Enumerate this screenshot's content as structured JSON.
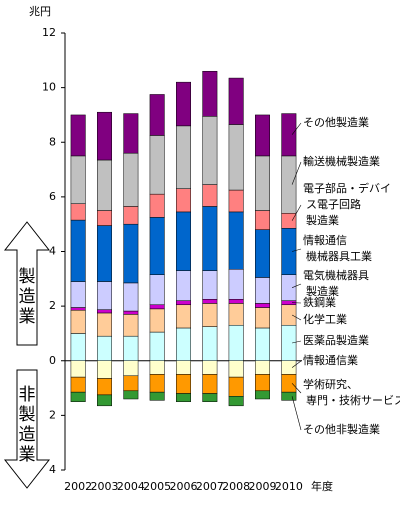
{
  "chart_data": {
    "type": "stacked-bar",
    "y_unit": "兆円",
    "x_label": "年度",
    "annotations": [
      "製造業",
      "非製造業"
    ],
    "categories": [
      "2002",
      "2003",
      "2004",
      "2005",
      "2006",
      "2007",
      "2008",
      "2009",
      "2010"
    ],
    "ylim": [
      -4,
      12
    ],
    "yticks": [
      {
        "value": -4,
        "label": "4"
      },
      {
        "value": -2,
        "label": "2"
      },
      0,
      2,
      4,
      6,
      8,
      10,
      12
    ],
    "series": [
      {
        "name": [
          "医薬品製造業"
        ],
        "color": "#ccffff",
        "values": [
          1.0,
          0.9,
          0.9,
          1.05,
          1.2,
          1.25,
          1.3,
          1.2,
          1.3
        ]
      },
      {
        "name": [
          "化学工業"
        ],
        "color": "#ffcc99",
        "values": [
          0.85,
          0.85,
          0.8,
          0.85,
          0.85,
          0.85,
          0.8,
          0.75,
          0.75
        ]
      },
      {
        "name": [
          "鉄鋼業"
        ],
        "color": "#cc00cc",
        "values": [
          0.1,
          0.12,
          0.12,
          0.15,
          0.15,
          0.15,
          0.15,
          0.15,
          0.15
        ]
      },
      {
        "name": [
          "電気機械器具",
          "製造業"
        ],
        "color": "#ccccff",
        "values": [
          0.95,
          1.03,
          1.03,
          1.1,
          1.1,
          1.05,
          1.1,
          0.95,
          0.95
        ]
      },
      {
        "name": [
          "情報通信",
          "機械器具工業"
        ],
        "color": "#0066cc",
        "values": [
          2.25,
          2.05,
          2.15,
          2.1,
          2.15,
          2.35,
          2.1,
          1.75,
          1.7
        ]
      },
      {
        "name": [
          "電子部品・デバイ",
          "ス電子回路",
          "製造業"
        ],
        "color": "#ff8080",
        "values": [
          0.6,
          0.55,
          0.65,
          0.85,
          0.85,
          0.8,
          0.8,
          0.7,
          0.55
        ]
      },
      {
        "name": [
          "輸送機械製造業"
        ],
        "color": "#c0c0c0",
        "values": [
          1.75,
          1.85,
          1.95,
          2.15,
          2.3,
          2.5,
          2.4,
          2.0,
          2.1
        ]
      },
      {
        "name": [
          "その他製造業"
        ],
        "color": "#800080",
        "values": [
          1.5,
          1.75,
          1.45,
          1.5,
          1.6,
          1.65,
          1.7,
          1.5,
          1.55
        ]
      },
      {
        "name": [
          "情報通信業"
        ],
        "color": "#ffffcc",
        "values": [
          -0.6,
          -0.65,
          -0.55,
          -0.5,
          -0.5,
          -0.5,
          -0.6,
          -0.5,
          -0.5
        ]
      },
      {
        "name": [
          "学術研究、",
          "専門・技術サービス業"
        ],
        "color": "#ff9900",
        "values": [
          -0.55,
          -0.6,
          -0.55,
          -0.65,
          -0.7,
          -0.7,
          -0.7,
          -0.6,
          -0.65
        ]
      },
      {
        "name": [
          "その他非製造業"
        ],
        "color": "#339933",
        "values": [
          -0.35,
          -0.4,
          -0.3,
          -0.3,
          -0.3,
          -0.3,
          -0.35,
          -0.3,
          -0.3
        ]
      }
    ]
  }
}
